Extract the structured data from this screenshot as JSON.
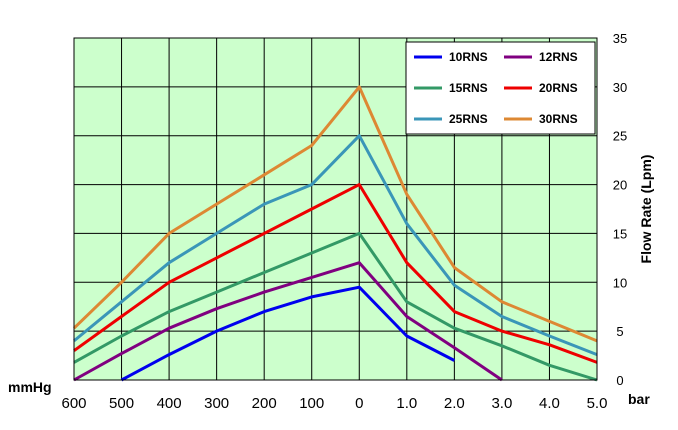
{
  "chart_data": {
    "type": "line",
    "categories": [
      "600",
      "500",
      "400",
      "300",
      "200",
      "100",
      "0",
      "1.0",
      "2.0",
      "3.0",
      "4.0",
      "5.0"
    ],
    "left_unit": "mmHg",
    "right_unit": "bar",
    "ylabel": "Flow Rate (Lpm)",
    "ylim": [
      0,
      35
    ],
    "yticks": [
      "0",
      "5",
      "10",
      "15",
      "20",
      "25",
      "30",
      "35"
    ],
    "grid": true,
    "legend_position": "top-right",
    "series": [
      {
        "name": "10RNS",
        "color": "#0000ee",
        "values": [
          null,
          0,
          2.6,
          5,
          7,
          8.5,
          9.5,
          4.5,
          2,
          null,
          null,
          null
        ]
      },
      {
        "name": "12RNS",
        "color": "#800080",
        "values": [
          0,
          2.7,
          5.3,
          7.3,
          9,
          10.5,
          12,
          6.5,
          3.3,
          0,
          null,
          null
        ]
      },
      {
        "name": "15RNS",
        "color": "#339966",
        "values": [
          1.8,
          4.5,
          7,
          9,
          11,
          13,
          15,
          8,
          5.3,
          3.5,
          1.5,
          0
        ]
      },
      {
        "name": "20RNS",
        "color": "#ee0000",
        "values": [
          3,
          6.5,
          10,
          12.5,
          15,
          17.5,
          20,
          12,
          7,
          5,
          3.6,
          1.8
        ]
      },
      {
        "name": "25RNS",
        "color": "#3a96b8",
        "values": [
          4,
          8,
          12,
          15,
          18,
          20,
          25,
          16,
          9.7,
          6.5,
          4.5,
          2.6
        ]
      },
      {
        "name": "30RNS",
        "color": "#dd8833",
        "values": [
          5.3,
          10,
          15,
          18,
          21,
          24,
          30,
          19,
          11.5,
          8,
          6,
          4
        ]
      }
    ]
  }
}
